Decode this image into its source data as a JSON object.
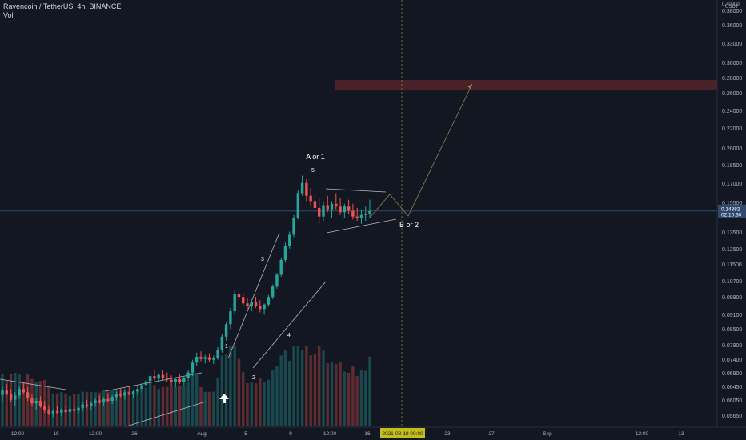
{
  "header": {
    "title": "Ravencoin / TetherUS, 4h, BINANCE",
    "indicator": "Vol"
  },
  "chart_data": {
    "type": "candlestick",
    "symbol": "Ravencoin / TetherUS",
    "interval": "4h",
    "exchange": "BINANCE",
    "currency": "USDT",
    "y_scale": "log",
    "grid": false,
    "price_ticks": [
      "0.40000",
      "0.38000",
      "0.36000",
      "0.33000",
      "0.30000",
      "0.28000",
      "0.26000",
      "0.24000",
      "0.22000",
      "0.20000",
      "0.18500",
      "0.17000",
      "0.15500",
      "0.14882",
      "0.13500",
      "0.12500",
      "0.11500",
      "0.10700",
      "0.09900",
      "0.09100",
      "0.08500",
      "0.07900",
      "0.07400",
      "0.06900",
      "0.06450",
      "0.06050",
      "0.05650"
    ],
    "current_price": {
      "value": "0.14882",
      "countdown": "02:10:30",
      "color": "#2f4a6e"
    },
    "time_ticks": [
      "12:00",
      "19",
      "12:00",
      "26",
      "Aug",
      "5",
      "9",
      "12:00",
      "16",
      "23",
      "27",
      "Sep",
      "12:00",
      "13"
    ],
    "cursor_time_label": "2021-08-19 00:00",
    "series": [
      {
        "name": "Vol",
        "type": "candlestick",
        "up_color": "#26a69a",
        "down_color": "#ef5350",
        "candles": [
          [
            0.0622,
            0.0645,
            0.0605,
            0.0635
          ],
          [
            0.0635,
            0.0655,
            0.062,
            0.0625
          ],
          [
            0.0625,
            0.064,
            0.06,
            0.0608
          ],
          [
            0.0608,
            0.063,
            0.059,
            0.062
          ],
          [
            0.062,
            0.065,
            0.061,
            0.064
          ],
          [
            0.064,
            0.066,
            0.0625,
            0.063
          ],
          [
            0.063,
            0.0645,
            0.0605,
            0.0612
          ],
          [
            0.0612,
            0.0625,
            0.059,
            0.0598
          ],
          [
            0.0598,
            0.0612,
            0.058,
            0.0605
          ],
          [
            0.0605,
            0.0618,
            0.0585,
            0.059
          ],
          [
            0.059,
            0.0605,
            0.0572,
            0.058
          ],
          [
            0.058,
            0.0592,
            0.0565,
            0.057
          ],
          [
            0.057,
            0.0582,
            0.056,
            0.0576
          ],
          [
            0.0576,
            0.059,
            0.0568,
            0.0572
          ],
          [
            0.0572,
            0.0585,
            0.0562,
            0.058
          ],
          [
            0.058,
            0.0592,
            0.057,
            0.0574
          ],
          [
            0.0574,
            0.0586,
            0.0566,
            0.0582
          ],
          [
            0.0582,
            0.0594,
            0.0572,
            0.0577
          ],
          [
            0.0577,
            0.059,
            0.0568,
            0.0585
          ],
          [
            0.0585,
            0.06,
            0.0576,
            0.0594
          ],
          [
            0.0594,
            0.0608,
            0.0584,
            0.059
          ],
          [
            0.059,
            0.0604,
            0.058,
            0.0598
          ],
          [
            0.0598,
            0.0612,
            0.0588,
            0.0606
          ],
          [
            0.0606,
            0.062,
            0.0596,
            0.06
          ],
          [
            0.06,
            0.0616,
            0.059,
            0.061
          ],
          [
            0.061,
            0.0625,
            0.06,
            0.0605
          ],
          [
            0.0605,
            0.0622,
            0.0596,
            0.0616
          ],
          [
            0.0616,
            0.0632,
            0.0606,
            0.0626
          ],
          [
            0.0626,
            0.0642,
            0.0615,
            0.062
          ],
          [
            0.062,
            0.0636,
            0.0608,
            0.063
          ],
          [
            0.063,
            0.0646,
            0.062,
            0.0624
          ],
          [
            0.0624,
            0.0638,
            0.0612,
            0.0632
          ],
          [
            0.0632,
            0.0648,
            0.0622,
            0.064
          ],
          [
            0.064,
            0.066,
            0.063,
            0.0652
          ],
          [
            0.0652,
            0.0672,
            0.0642,
            0.0664
          ],
          [
            0.0664,
            0.069,
            0.0655,
            0.068
          ],
          [
            0.068,
            0.07,
            0.0666,
            0.0672
          ],
          [
            0.0672,
            0.069,
            0.066,
            0.0684
          ],
          [
            0.0684,
            0.07,
            0.0668,
            0.0675
          ],
          [
            0.0675,
            0.0692,
            0.066,
            0.0668
          ],
          [
            0.0668,
            0.0682,
            0.065,
            0.066
          ],
          [
            0.066,
            0.0676,
            0.0645,
            0.067
          ],
          [
            0.067,
            0.0688,
            0.0655,
            0.0662
          ],
          [
            0.0662,
            0.068,
            0.0648,
            0.0674
          ],
          [
            0.0674,
            0.07,
            0.0664,
            0.0692
          ],
          [
            0.0692,
            0.0735,
            0.068,
            0.0725
          ],
          [
            0.0725,
            0.076,
            0.0712,
            0.0745
          ],
          [
            0.0745,
            0.0765,
            0.073,
            0.0738
          ],
          [
            0.0738,
            0.0752,
            0.0722,
            0.0744
          ],
          [
            0.0744,
            0.0758,
            0.0728,
            0.0735
          ],
          [
            0.0735,
            0.075,
            0.072,
            0.0742
          ],
          [
            0.0742,
            0.078,
            0.0735,
            0.077
          ],
          [
            0.077,
            0.083,
            0.076,
            0.082
          ],
          [
            0.082,
            0.088,
            0.0805,
            0.087
          ],
          [
            0.087,
            0.094,
            0.085,
            0.0925
          ],
          [
            0.0925,
            0.102,
            0.091,
            0.1005
          ],
          [
            0.1005,
            0.106,
            0.0975,
            0.099
          ],
          [
            0.099,
            0.101,
            0.0945,
            0.096
          ],
          [
            0.096,
            0.0985,
            0.0935,
            0.0948
          ],
          [
            0.0948,
            0.0975,
            0.0925,
            0.0965
          ],
          [
            0.0965,
            0.099,
            0.094,
            0.095
          ],
          [
            0.095,
            0.0975,
            0.092,
            0.0935
          ],
          [
            0.0935,
            0.096,
            0.091,
            0.0955
          ],
          [
            0.0955,
            0.1,
            0.0945,
            0.099
          ],
          [
            0.099,
            0.105,
            0.098,
            0.104
          ],
          [
            0.104,
            0.111,
            0.103,
            0.11
          ],
          [
            0.11,
            0.119,
            0.109,
            0.118
          ],
          [
            0.118,
            0.128,
            0.1165,
            0.126
          ],
          [
            0.126,
            0.135,
            0.1245,
            0.133
          ],
          [
            0.133,
            0.146,
            0.1315,
            0.144
          ],
          [
            0.144,
            0.164,
            0.143,
            0.162
          ],
          [
            0.162,
            0.176,
            0.16,
            0.17
          ],
          [
            0.17,
            0.173,
            0.156,
            0.16
          ],
          [
            0.16,
            0.166,
            0.152,
            0.156
          ],
          [
            0.156,
            0.162,
            0.148,
            0.151
          ],
          [
            0.151,
            0.158,
            0.14,
            0.145
          ],
          [
            0.145,
            0.156,
            0.142,
            0.153
          ],
          [
            0.153,
            0.16,
            0.148,
            0.15
          ],
          [
            0.15,
            0.156,
            0.144,
            0.154
          ],
          [
            0.154,
            0.162,
            0.15,
            0.152
          ],
          [
            0.152,
            0.158,
            0.146,
            0.148
          ],
          [
            0.148,
            0.154,
            0.144,
            0.152
          ],
          [
            0.152,
            0.157,
            0.147,
            0.149
          ],
          [
            0.149,
            0.154,
            0.143,
            0.145
          ],
          [
            0.145,
            0.151,
            0.142,
            0.144
          ],
          [
            0.144,
            0.15,
            0.14,
            0.146
          ],
          [
            0.146,
            0.152,
            0.142,
            0.147
          ],
          [
            0.147,
            0.157,
            0.144,
            0.1488
          ]
        ]
      }
    ],
    "annotations": [
      {
        "text": "A or 1"
      },
      {
        "text": "5"
      },
      {
        "text": "3"
      },
      {
        "text": "4"
      },
      {
        "text": "1"
      },
      {
        "text": "2"
      },
      {
        "text": "B or 2"
      }
    ],
    "target_zone": {
      "from": 0.265,
      "to": 0.275,
      "color": "#4a2129"
    }
  }
}
